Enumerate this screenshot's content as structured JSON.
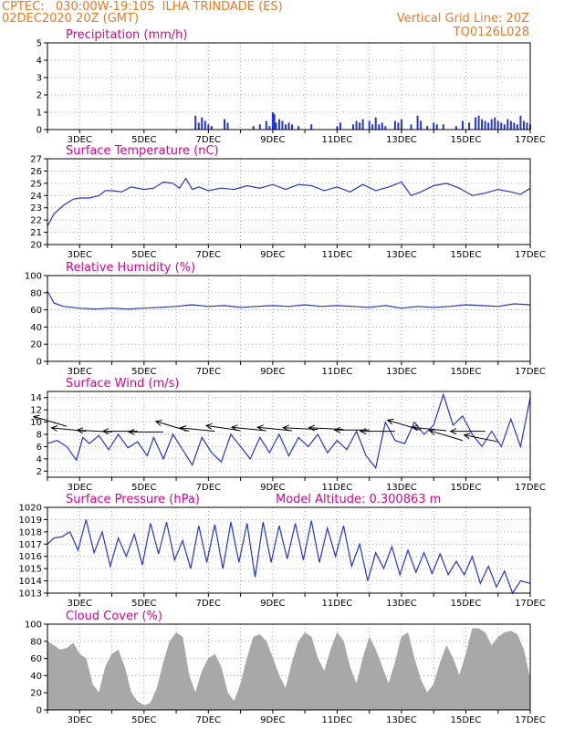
{
  "header": {
    "line1_left": "CPTEC:   030:00W-19:10S  ILHA TRINDADE (ES)",
    "line2_left": "02DEC2020 20Z (GMT)",
    "line1_right": "Vertical Grid Line: 20Z",
    "line2_right": "TQ0126L028"
  },
  "colors": {
    "header": "#f07820",
    "title": "#e0008a",
    "series": "#2233dd",
    "cloud": "#a8a8a8",
    "arrow": "#000000",
    "grid": "#888888"
  },
  "x_ticks": [
    "3DEC",
    "5DEC",
    "7DEC",
    "9DEC",
    "11DEC",
    "13DEC",
    "15DEC",
    "17DEC"
  ],
  "chart_data": [
    {
      "id": "precip",
      "type": "bar",
      "title": "Precipitation (mm/h)",
      "ylim": [
        0,
        5
      ],
      "yticks": [
        0,
        1,
        2,
        3,
        4,
        5
      ],
      "x": [
        6.6,
        6.7,
        6.8,
        6.9,
        7.0,
        7.1,
        7.5,
        7.6,
        8.4,
        8.6,
        8.8,
        8.9,
        9.0,
        9.05,
        9.1,
        9.2,
        9.3,
        9.4,
        9.5,
        9.6,
        9.8,
        10.2,
        11.0,
        11.1,
        11.5,
        11.6,
        11.7,
        11.8,
        12.0,
        12.1,
        12.2,
        12.3,
        12.4,
        12.5,
        12.8,
        12.9,
        13.0,
        13.3,
        13.5,
        13.6,
        13.8,
        14.0,
        14.1,
        14.3,
        14.7,
        14.9,
        15.1,
        15.3,
        15.4,
        15.5,
        15.6,
        15.7,
        15.8,
        15.9,
        16.0,
        16.1,
        16.2,
        16.3,
        16.4,
        16.5,
        16.6,
        16.7,
        16.8,
        16.9,
        17.0
      ],
      "values": [
        0.8,
        0.4,
        0.7,
        0.5,
        0.3,
        0.2,
        0.6,
        0.4,
        0.2,
        0.3,
        0.5,
        0.2,
        1.0,
        0.9,
        0.4,
        0.6,
        0.5,
        0.3,
        0.4,
        0.3,
        0.2,
        0.3,
        0.2,
        0.4,
        0.3,
        0.5,
        0.4,
        0.6,
        0.5,
        0.3,
        0.7,
        0.3,
        0.4,
        0.2,
        0.5,
        0.4,
        0.6,
        0.3,
        0.8,
        0.5,
        0.2,
        0.4,
        0.3,
        0.3,
        0.2,
        0.5,
        0.4,
        0.7,
        0.8,
        0.6,
        0.5,
        0.4,
        0.6,
        0.7,
        0.5,
        0.4,
        0.3,
        0.6,
        0.5,
        0.4,
        0.3,
        0.8,
        0.5,
        0.4,
        0.3
      ]
    },
    {
      "id": "temp",
      "type": "line",
      "title": "Surface Temperature (nC)",
      "ylim": [
        20,
        27
      ],
      "yticks": [
        20,
        21,
        22,
        23,
        24,
        25,
        26,
        27
      ],
      "x": [
        2.0,
        2.2,
        2.5,
        2.8,
        3.0,
        3.3,
        3.6,
        3.8,
        4.0,
        4.3,
        4.6,
        5.0,
        5.3,
        5.6,
        5.9,
        6.1,
        6.3,
        6.5,
        6.7,
        7.0,
        7.4,
        7.8,
        8.2,
        8.6,
        9.0,
        9.4,
        9.8,
        10.2,
        10.6,
        11.0,
        11.4,
        11.8,
        12.2,
        12.6,
        13.0,
        13.3,
        13.6,
        14.0,
        14.4,
        14.8,
        15.2,
        15.6,
        16.0,
        16.4,
        16.7,
        17.0
      ],
      "values": [
        21.5,
        22.5,
        23.2,
        23.7,
        23.8,
        23.8,
        24.0,
        24.4,
        24.4,
        24.3,
        24.7,
        24.5,
        24.6,
        25.1,
        25.0,
        24.6,
        25.4,
        24.5,
        24.7,
        24.4,
        24.6,
        24.5,
        24.8,
        24.6,
        24.9,
        24.5,
        24.9,
        24.8,
        24.4,
        24.7,
        24.3,
        24.9,
        24.4,
        24.7,
        25.1,
        24.0,
        24.3,
        24.8,
        25.0,
        24.6,
        24.0,
        24.2,
        24.5,
        24.3,
        24.1,
        24.6
      ]
    },
    {
      "id": "rh",
      "type": "line",
      "title": "Relative Humidity (%)",
      "ylim": [
        0,
        100
      ],
      "yticks": [
        0,
        20,
        40,
        60,
        80,
        100
      ],
      "x": [
        2.0,
        2.2,
        2.5,
        3.0,
        3.5,
        4.0,
        4.5,
        5.0,
        5.5,
        6.0,
        6.5,
        7.0,
        7.5,
        8.0,
        8.5,
        9.0,
        9.5,
        10.0,
        10.5,
        11.0,
        11.5,
        12.0,
        12.5,
        13.0,
        13.5,
        14.0,
        14.5,
        15.0,
        15.5,
        16.0,
        16.5,
        17.0
      ],
      "values": [
        82,
        68,
        64,
        62,
        61,
        62,
        61,
        62,
        63,
        64,
        66,
        64,
        65,
        63,
        64,
        65,
        64,
        66,
        64,
        65,
        64,
        63,
        65,
        62,
        64,
        63,
        64,
        66,
        65,
        64,
        67,
        66
      ]
    },
    {
      "id": "wind",
      "type": "line",
      "title": "Surface Wind (m/s)",
      "ylim": [
        1,
        15
      ],
      "yticks": [
        2,
        4,
        6,
        8,
        10,
        12,
        14
      ],
      "x": [
        2.0,
        2.3,
        2.6,
        2.9,
        3.1,
        3.3,
        3.6,
        3.9,
        4.2,
        4.5,
        4.8,
        5.1,
        5.3,
        5.6,
        5.9,
        6.2,
        6.5,
        6.8,
        7.1,
        7.4,
        7.7,
        8.0,
        8.3,
        8.6,
        8.9,
        9.2,
        9.5,
        9.8,
        10.1,
        10.4,
        10.7,
        11.0,
        11.3,
        11.6,
        11.9,
        12.2,
        12.5,
        12.8,
        13.1,
        13.4,
        13.7,
        14.0,
        14.3,
        14.6,
        14.9,
        15.2,
        15.5,
        15.8,
        16.1,
        16.4,
        16.7,
        17.0
      ],
      "values": [
        6.5,
        7.0,
        6.0,
        3.8,
        7.5,
        6.5,
        7.8,
        5.5,
        8.0,
        5.8,
        6.8,
        4.5,
        7.5,
        4.0,
        8.0,
        5.5,
        3.0,
        7.5,
        5.0,
        3.5,
        8.0,
        6.0,
        4.0,
        7.5,
        5.0,
        8.0,
        4.5,
        7.5,
        6.0,
        8.0,
        5.0,
        7.0,
        5.5,
        8.5,
        4.5,
        2.5,
        10.0,
        7.0,
        6.5,
        10.0,
        8.0,
        9.5,
        14.5,
        9.5,
        11.0,
        8.0,
        6.0,
        8.5,
        6.0,
        10.5,
        6.0,
        14.0
      ],
      "vectors": [
        {
          "x": 2.6,
          "y": 9.3,
          "u": -1,
          "v": 0.3
        },
        {
          "x": 3.2,
          "y": 8.5,
          "u": -1,
          "v": 0.1
        },
        {
          "x": 4.0,
          "y": 8.4,
          "u": -1,
          "v": 0.05
        },
        {
          "x": 4.8,
          "y": 8.5,
          "u": -1,
          "v": 0.0
        },
        {
          "x": 5.6,
          "y": 8.4,
          "u": -1,
          "v": 0.0
        },
        {
          "x": 6.4,
          "y": 8.5,
          "u": -1,
          "v": 0.3
        },
        {
          "x": 7.2,
          "y": 8.5,
          "u": -1,
          "v": 0.1
        },
        {
          "x": 8.0,
          "y": 8.6,
          "u": -1,
          "v": 0.15
        },
        {
          "x": 8.8,
          "y": 8.6,
          "u": -1,
          "v": 0.1
        },
        {
          "x": 9.6,
          "y": 8.6,
          "u": -1,
          "v": 0.1
        },
        {
          "x": 10.4,
          "y": 8.8,
          "u": -1,
          "v": 0.05
        },
        {
          "x": 11.2,
          "y": 8.8,
          "u": -1,
          "v": 0.05
        },
        {
          "x": 12.0,
          "y": 8.7,
          "u": -1,
          "v": 0.0
        },
        {
          "x": 12.8,
          "y": 8.5,
          "u": -1,
          "v": 0.0
        },
        {
          "x": 13.6,
          "y": 8.7,
          "u": -1,
          "v": 0.3
        },
        {
          "x": 14.4,
          "y": 8.6,
          "u": -1,
          "v": 0.1
        },
        {
          "x": 14.9,
          "y": 7.0,
          "u": -1,
          "v": 0.3
        },
        {
          "x": 15.6,
          "y": 8.5,
          "u": -1,
          "v": 0.0
        },
        {
          "x": 16.0,
          "y": 6.8,
          "u": -1,
          "v": 0.2
        }
      ]
    },
    {
      "id": "pres",
      "type": "line",
      "title": "Surface Pressure (hPa)",
      "title2": "Model Altitude: 0.300863 m",
      "ylim": [
        1013,
        1020
      ],
      "yticks": [
        1013,
        1014,
        1015,
        1016,
        1017,
        1018,
        1019,
        1020
      ],
      "x": [
        2.0,
        2.2,
        2.45,
        2.7,
        2.95,
        3.2,
        3.45,
        3.7,
        3.95,
        4.2,
        4.45,
        4.7,
        4.95,
        5.2,
        5.45,
        5.7,
        5.95,
        6.2,
        6.45,
        6.7,
        6.95,
        7.2,
        7.45,
        7.7,
        7.95,
        8.2,
        8.45,
        8.7,
        8.95,
        9.2,
        9.45,
        9.7,
        9.95,
        10.2,
        10.45,
        10.7,
        10.95,
        11.2,
        11.45,
        11.7,
        11.95,
        12.2,
        12.45,
        12.7,
        12.95,
        13.2,
        13.45,
        13.7,
        13.95,
        14.2,
        14.45,
        14.7,
        14.95,
        15.2,
        15.45,
        15.7,
        15.95,
        16.2,
        16.45,
        16.7,
        17.0
      ],
      "values": [
        1017.0,
        1017.5,
        1017.6,
        1018.0,
        1016.5,
        1019.0,
        1016.3,
        1018.0,
        1015.2,
        1017.5,
        1016.0,
        1017.8,
        1015.3,
        1018.7,
        1016.2,
        1018.8,
        1015.7,
        1017.3,
        1015.0,
        1018.5,
        1015.5,
        1018.6,
        1015.0,
        1018.8,
        1015.5,
        1018.7,
        1014.3,
        1018.8,
        1015.5,
        1018.5,
        1015.8,
        1018.7,
        1015.7,
        1018.9,
        1015.5,
        1018.3,
        1016.0,
        1018.5,
        1015.2,
        1017.0,
        1014.0,
        1016.3,
        1015.0,
        1016.8,
        1014.5,
        1016.5,
        1014.7,
        1016.3,
        1014.6,
        1016.2,
        1014.5,
        1015.6,
        1014.5,
        1016.0,
        1013.8,
        1015.2,
        1013.5,
        1014.8,
        1013.0,
        1014.0,
        1013.8
      ]
    },
    {
      "id": "cloud",
      "type": "area",
      "title": "Cloud Cover (%)",
      "ylim": [
        0,
        100
      ],
      "yticks": [
        0,
        20,
        40,
        60,
        80,
        100
      ],
      "x": [
        2.0,
        2.2,
        2.4,
        2.6,
        2.8,
        3.0,
        3.2,
        3.4,
        3.6,
        3.8,
        4.0,
        4.2,
        4.4,
        4.6,
        4.8,
        5.0,
        5.2,
        5.4,
        5.6,
        5.8,
        6.0,
        6.2,
        6.4,
        6.6,
        6.8,
        7.0,
        7.2,
        7.4,
        7.6,
        7.8,
        8.0,
        8.2,
        8.4,
        8.6,
        8.8,
        9.0,
        9.2,
        9.4,
        9.6,
        9.8,
        10.0,
        10.2,
        10.4,
        10.6,
        10.8,
        11.0,
        11.2,
        11.4,
        11.6,
        11.8,
        12.0,
        12.2,
        12.4,
        12.6,
        12.8,
        13.0,
        13.2,
        13.4,
        13.6,
        13.8,
        14.0,
        14.2,
        14.4,
        14.6,
        14.8,
        15.0,
        15.2,
        15.4,
        15.6,
        15.8,
        16.0,
        16.2,
        16.4,
        16.6,
        16.8,
        17.0
      ],
      "values": [
        80,
        75,
        70,
        72,
        78,
        65,
        60,
        30,
        20,
        50,
        65,
        70,
        50,
        20,
        10,
        5,
        8,
        25,
        55,
        80,
        90,
        85,
        40,
        20,
        45,
        60,
        65,
        50,
        20,
        10,
        30,
        60,
        85,
        88,
        80,
        60,
        40,
        25,
        55,
        80,
        90,
        85,
        60,
        45,
        70,
        90,
        80,
        50,
        30,
        60,
        85,
        70,
        50,
        30,
        55,
        85,
        90,
        60,
        35,
        20,
        30,
        55,
        75,
        60,
        40,
        65,
        95,
        95,
        90,
        75,
        85,
        90,
        92,
        88,
        70,
        35
      ]
    }
  ]
}
